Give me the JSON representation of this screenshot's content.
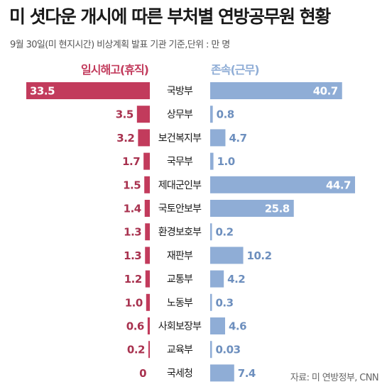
{
  "title": "미 셧다운 개시에 따른 부처별 연방공무원 현황",
  "subtitle": "9월 30일(미 현지시간) 비상계획 발표 기관 기준,단위 : 만 명",
  "source": "자료: 미 연방정부, CNN",
  "colors": {
    "left": "#c23b5c",
    "right": "#8fadd6",
    "left_text": "#a8324f",
    "right_text": "#6d8fbe"
  },
  "chart_data": {
    "type": "bar",
    "categories": [
      "국방부",
      "상무부",
      "보건복지부",
      "국무부",
      "제대군인부",
      "국토안보부",
      "환경보호부",
      "재판부",
      "교통부",
      "노동부",
      "사회보장부",
      "교육부",
      "국세청"
    ],
    "series": [
      {
        "name": "일시해고(휴직)",
        "values": [
          33.5,
          3.5,
          3.2,
          1.7,
          1.5,
          1.4,
          1.3,
          1.3,
          1.2,
          1.0,
          0.6,
          0.2,
          0
        ],
        "labels": [
          "33.5",
          "3.5",
          "3.2",
          "1.7",
          "1.5",
          "1.4",
          "1.3",
          "1.3",
          "1.2",
          "1.0",
          "0.6",
          "0.2",
          "0"
        ]
      },
      {
        "name": "존속(근무)",
        "values": [
          40.7,
          0.8,
          4.7,
          1.0,
          44.7,
          25.8,
          0.2,
          10.2,
          4.2,
          0.3,
          4.6,
          0.03,
          7.4
        ],
        "labels": [
          "40.7",
          "0.8",
          "4.7",
          "1.0",
          "44.7",
          "25.8",
          "0.2",
          "10.2",
          "4.2",
          "0.3",
          "4.6",
          "0.03",
          "7.4"
        ]
      }
    ],
    "orientation": "horizontal-diverging"
  }
}
